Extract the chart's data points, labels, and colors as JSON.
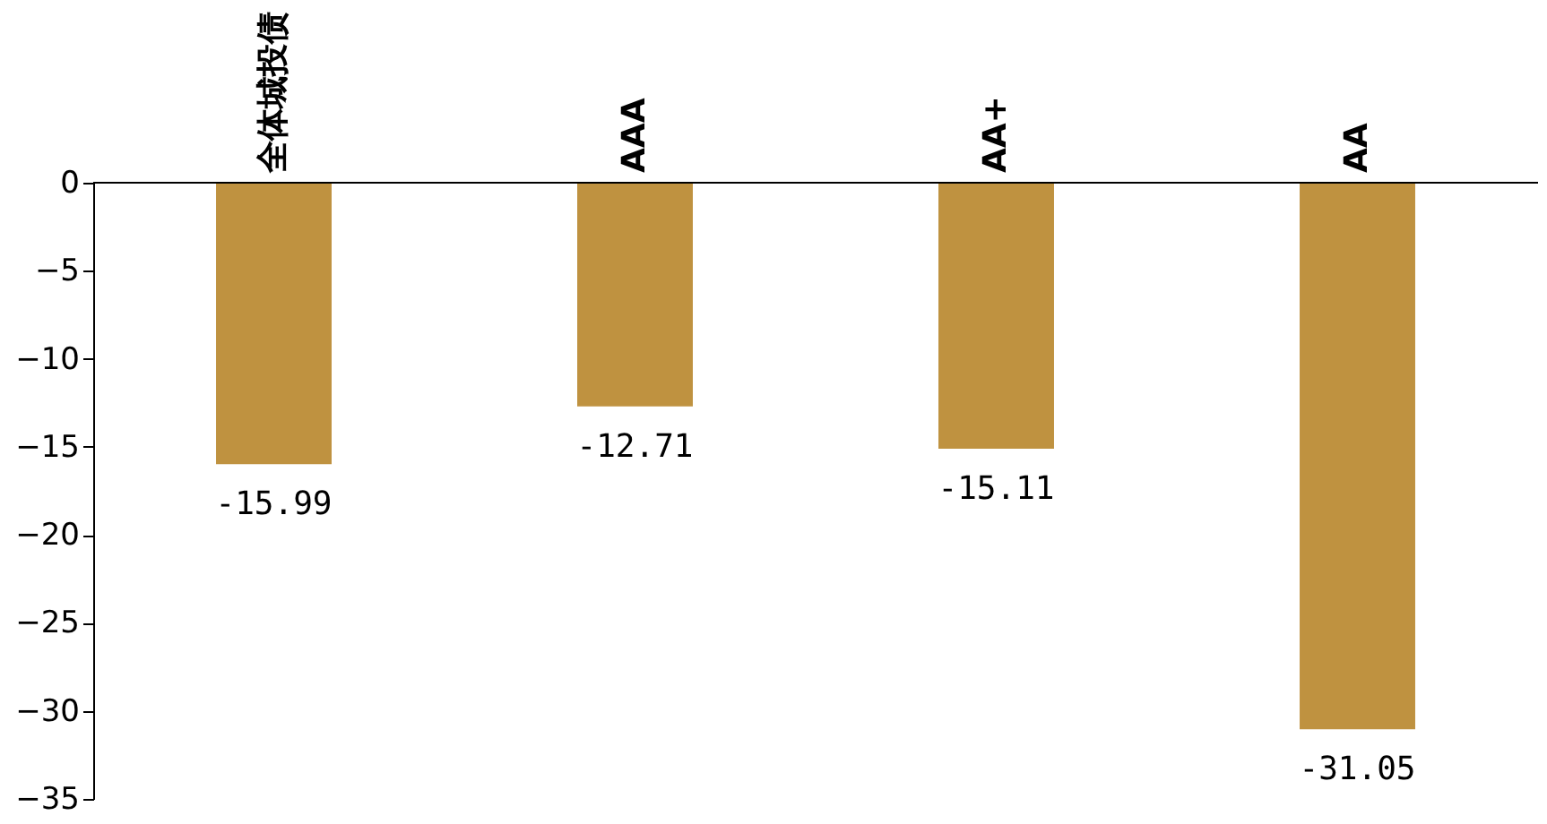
{
  "chart_data": {
    "type": "bar",
    "categories": [
      "全体城投债",
      "AAA",
      "AA+",
      "AA"
    ],
    "values": [
      -15.99,
      -12.71,
      -15.11,
      -31.05
    ],
    "color": "#bf9240",
    "ylim": [
      -35,
      0
    ],
    "yticks": [
      -35,
      -30,
      -25,
      -20,
      -15,
      -10,
      -5,
      0
    ],
    "data_labels": true
  }
}
